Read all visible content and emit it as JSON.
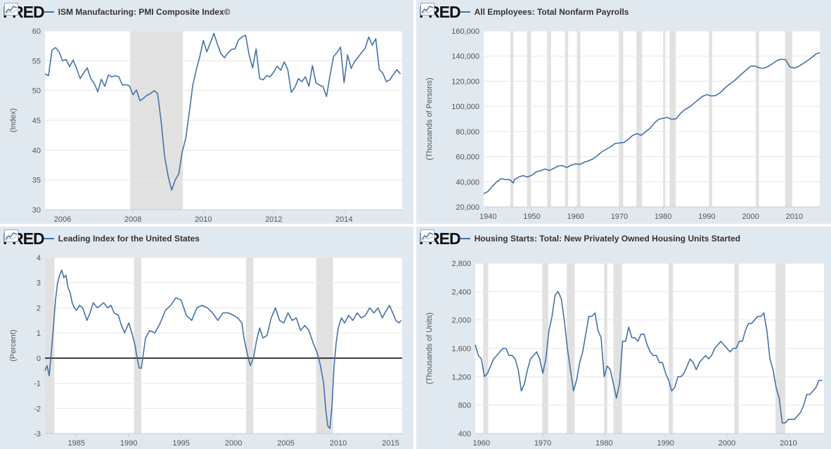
{
  "logo": {
    "text": "FRED",
    "icon": "fred-chart-icon"
  },
  "colors": {
    "series": "#4572a7",
    "recession": "#e1e1e1",
    "panel_bg": "#e1e9f0",
    "plot_bg": "#ffffff",
    "zero_line": "#000000"
  },
  "chart_data": [
    {
      "id": "pmi",
      "type": "line",
      "title": "ISM Manufacturing: PMI Composite Index©",
      "ylabel": "(Index)",
      "xlim": [
        2005.5,
        2015.65
      ],
      "ylim": [
        30,
        60
      ],
      "yticks": [
        30,
        35,
        40,
        45,
        50,
        55,
        60
      ],
      "yticks_format": "plain",
      "xticks": [
        2006,
        2008,
        2010,
        2012,
        2014
      ],
      "recessions": [
        [
          2007.92,
          2009.42
        ]
      ],
      "series": [
        {
          "x": [
            2005.5,
            2005.6,
            2005.7,
            2005.8,
            2005.9,
            2006.0,
            2006.1,
            2006.2,
            2006.3,
            2006.4,
            2006.5,
            2006.6,
            2006.7,
            2006.8,
            2006.9,
            2007.0,
            2007.1,
            2007.2,
            2007.3,
            2007.4,
            2007.5,
            2007.6,
            2007.7,
            2007.8,
            2007.9,
            2008.0,
            2008.1,
            2008.2,
            2008.3,
            2008.4,
            2008.5,
            2008.6,
            2008.7,
            2008.8,
            2008.9,
            2009.0,
            2009.1,
            2009.2,
            2009.3,
            2009.4,
            2009.5,
            2009.6,
            2009.7,
            2009.8,
            2009.9,
            2010.0,
            2010.1,
            2010.2,
            2010.3,
            2010.4,
            2010.5,
            2010.6,
            2010.7,
            2010.8,
            2010.9,
            2011.0,
            2011.1,
            2011.2,
            2011.3,
            2011.4,
            2011.5,
            2011.6,
            2011.7,
            2011.8,
            2011.9,
            2012.0,
            2012.1,
            2012.2,
            2012.3,
            2012.4,
            2012.5,
            2012.6,
            2012.7,
            2012.8,
            2012.9,
            2013.0,
            2013.1,
            2013.2,
            2013.3,
            2013.4,
            2013.5,
            2013.6,
            2013.7,
            2013.8,
            2013.9,
            2014.0,
            2014.1,
            2014.2,
            2014.3,
            2014.4,
            2014.5,
            2014.6,
            2014.7,
            2014.8,
            2014.9,
            2015.0,
            2015.1,
            2015.2,
            2015.3,
            2015.4,
            2015.5,
            2015.6
          ],
          "y": [
            52.8,
            52.5,
            56.8,
            57.2,
            56.5,
            55.0,
            55.2,
            54.0,
            55.1,
            53.7,
            52.0,
            53.0,
            53.8,
            52.0,
            51.2,
            49.8,
            51.9,
            50.7,
            52.6,
            52.3,
            52.5,
            52.3,
            50.9,
            51.0,
            50.8,
            49.3,
            50.1,
            48.3,
            48.7,
            49.2,
            49.5,
            50.0,
            49.5,
            44.8,
            38.9,
            35.6,
            33.3,
            35.0,
            36.0,
            39.7,
            42.0,
            46.3,
            50.9,
            53.5,
            55.7,
            58.4,
            56.5,
            58.0,
            59.6,
            57.8,
            56.2,
            55.5,
            56.3,
            56.9,
            57.0,
            58.5,
            59.0,
            59.3,
            56.0,
            53.8,
            57.0,
            52.0,
            51.8,
            52.5,
            52.3,
            53.1,
            54.1,
            53.4,
            54.8,
            53.5,
            49.7,
            50.5,
            52.0,
            51.5,
            52.3,
            50.7,
            54.2,
            51.3,
            50.9,
            50.7,
            49.0,
            52.5,
            55.7,
            56.4,
            57.3,
            51.3,
            56.0,
            53.7,
            54.9,
            55.6,
            56.4,
            57.1,
            59.0,
            57.6,
            58.7,
            53.5,
            52.9,
            51.5,
            51.8,
            52.7,
            53.5,
            52.8
          ]
        }
      ]
    },
    {
      "id": "payrolls",
      "type": "line",
      "title": "All Employees: Total Nonfarm Payrolls",
      "ylabel": "(Thousands of Persons)",
      "xlim": [
        1939,
        2015.8
      ],
      "ylim": [
        20000,
        160000
      ],
      "yticks": [
        20000,
        40000,
        60000,
        80000,
        100000,
        120000,
        140000,
        160000
      ],
      "yticks_format": "thousands",
      "xticks": [
        1940,
        1950,
        1960,
        1970,
        1980,
        1990,
        2000,
        2010
      ],
      "recessions": [
        [
          1945.1,
          1945.8
        ],
        [
          1948.9,
          1949.8
        ],
        [
          1953.5,
          1954.4
        ],
        [
          1957.6,
          1958.3
        ],
        [
          1960.3,
          1961.1
        ],
        [
          1969.9,
          1970.9
        ],
        [
          1973.9,
          1975.2
        ],
        [
          1980.0,
          1980.5
        ],
        [
          1981.5,
          1982.9
        ],
        [
          1990.5,
          1991.2
        ],
        [
          2001.2,
          2001.9
        ],
        [
          2007.9,
          2009.5
        ]
      ],
      "series": [
        {
          "x": [
            1939,
            1940,
            1941,
            1942,
            1943,
            1944,
            1945,
            1945.8,
            1946,
            1947,
            1948,
            1949,
            1950,
            1951,
            1952,
            1953,
            1954,
            1955,
            1956,
            1957,
            1958,
            1959,
            1960,
            1961,
            1962,
            1963,
            1964,
            1965,
            1966,
            1967,
            1968,
            1969,
            1970,
            1971,
            1972,
            1973,
            1974,
            1975,
            1976,
            1977,
            1978,
            1979,
            1980,
            1981,
            1982,
            1983,
            1984,
            1985,
            1986,
            1987,
            1988,
            1989,
            1990,
            1991,
            1992,
            1993,
            1994,
            1995,
            1996,
            1997,
            1998,
            1999,
            2000,
            2001,
            2002,
            2003,
            2004,
            2005,
            2006,
            2007,
            2008,
            2009,
            2010,
            2011,
            2012,
            2013,
            2014,
            2015,
            2015.8
          ],
          "y": [
            30500,
            32400,
            36500,
            40000,
            42400,
            41900,
            41500,
            39000,
            41700,
            43800,
            44900,
            43800,
            45200,
            47900,
            48800,
            50200,
            48990,
            50600,
            52500,
            52900,
            51300,
            53300,
            54200,
            53800,
            55600,
            56700,
            58300,
            60800,
            63900,
            65800,
            67900,
            70400,
            70900,
            71200,
            73700,
            76800,
            78300,
            77000,
            79800,
            82500,
            86700,
            89800,
            90500,
            91200,
            89600,
            90200,
            94500,
            97500,
            99500,
            102200,
            105200,
            107900,
            109400,
            108300,
            108600,
            110700,
            114100,
            117200,
            119600,
            122700,
            125900,
            128900,
            132000,
            132100,
            130600,
            130300,
            131800,
            134000,
            136400,
            137600,
            137100,
            131300,
            130500,
            131900,
            134100,
            136400,
            139000,
            141800,
            142700
          ]
        }
      ]
    },
    {
      "id": "leading",
      "type": "line",
      "title": "Leading Index for the United States",
      "ylabel": "(Percent)",
      "xlim": [
        1982,
        2016.1
      ],
      "ylim": [
        -3,
        4
      ],
      "yticks": [
        -3,
        -2,
        -1,
        0,
        1,
        2,
        3,
        4
      ],
      "yticks_format": "plain",
      "xticks": [
        1985,
        1990,
        1995,
        2000,
        2005,
        2010,
        2015
      ],
      "zero_line": true,
      "recessions": [
        [
          1982.0,
          1982.9
        ],
        [
          1990.5,
          1991.2
        ],
        [
          2001.2,
          2001.9
        ],
        [
          2007.9,
          2009.5
        ]
      ],
      "series": [
        {
          "x": [
            1982.0,
            1982.2,
            1982.4,
            1982.6,
            1982.8,
            1983.0,
            1983.2,
            1983.4,
            1983.6,
            1983.8,
            1984.0,
            1984.2,
            1984.4,
            1984.6,
            1984.8,
            1985.0,
            1985.3,
            1985.6,
            1986.0,
            1986.3,
            1986.6,
            1987.0,
            1987.3,
            1987.6,
            1988.0,
            1988.3,
            1988.6,
            1989.0,
            1989.3,
            1989.6,
            1990.0,
            1990.3,
            1990.6,
            1990.8,
            1991.0,
            1991.2,
            1991.4,
            1991.6,
            1992.0,
            1992.5,
            1993.0,
            1993.5,
            1994.0,
            1994.5,
            1995.0,
            1995.5,
            1996.0,
            1996.5,
            1997.0,
            1997.5,
            1998.0,
            1998.5,
            1999.0,
            1999.5,
            2000.0,
            2000.4,
            2000.8,
            2001.0,
            2001.3,
            2001.6,
            2001.9,
            2002.2,
            2002.5,
            2002.8,
            2003.2,
            2003.6,
            2004.0,
            2004.4,
            2004.8,
            2005.2,
            2005.6,
            2006.0,
            2006.4,
            2006.8,
            2007.2,
            2007.6,
            2008.0,
            2008.3,
            2008.6,
            2008.8,
            2009.0,
            2009.2,
            2009.4,
            2009.6,
            2009.8,
            2010.0,
            2010.3,
            2010.6,
            2011.0,
            2011.4,
            2011.8,
            2012.2,
            2012.6,
            2013.0,
            2013.4,
            2013.8,
            2014.2,
            2014.6,
            2014.9,
            2015.2,
            2015.5,
            2015.8,
            2016.0
          ],
          "y": [
            -0.5,
            -0.3,
            -0.7,
            0.2,
            1.2,
            2.3,
            3.0,
            3.3,
            3.5,
            3.2,
            3.3,
            2.8,
            2.6,
            2.2,
            2.0,
            1.9,
            2.1,
            2.0,
            1.5,
            1.8,
            2.2,
            2.0,
            2.1,
            2.2,
            2.0,
            2.1,
            1.8,
            1.7,
            1.3,
            1.0,
            1.4,
            1.0,
            0.5,
            0.0,
            -0.4,
            -0.4,
            0.2,
            0.8,
            1.1,
            1.0,
            1.4,
            1.9,
            2.1,
            2.4,
            2.3,
            1.7,
            1.5,
            2.0,
            2.1,
            2.0,
            1.8,
            1.5,
            1.8,
            1.8,
            1.7,
            1.6,
            1.4,
            0.8,
            0.2,
            -0.3,
            0.0,
            0.7,
            1.2,
            0.8,
            0.9,
            1.6,
            2.0,
            1.5,
            1.4,
            1.8,
            1.5,
            1.6,
            1.1,
            1.3,
            1.1,
            0.6,
            0.2,
            -0.3,
            -1.0,
            -2.0,
            -2.7,
            -2.8,
            -1.9,
            -0.3,
            0.6,
            1.2,
            1.6,
            1.4,
            1.7,
            1.5,
            1.8,
            1.6,
            1.7,
            2.0,
            1.8,
            2.0,
            1.6,
            1.9,
            2.1,
            1.8,
            1.5,
            1.4,
            1.5
          ]
        }
      ]
    },
    {
      "id": "housing",
      "type": "line",
      "title": "Housing Starts: Total: New Privately Owned Housing Units Started",
      "ylabel": "(Thousands of Units)",
      "xlim": [
        1959,
        2015.8
      ],
      "ylim": [
        400,
        2800
      ],
      "yticks": [
        400,
        800,
        1200,
        1600,
        2000,
        2400,
        2800
      ],
      "yticks_format": "thousands",
      "xticks": [
        1960,
        1970,
        1980,
        1990,
        2000,
        2010
      ],
      "recessions": [
        [
          1960.3,
          1961.1
        ],
        [
          1969.9,
          1970.9
        ],
        [
          1973.9,
          1975.2
        ],
        [
          1980.0,
          1980.5
        ],
        [
          1981.5,
          1982.9
        ],
        [
          1990.5,
          1991.2
        ],
        [
          2001.2,
          2001.9
        ],
        [
          2007.9,
          2009.5
        ]
      ],
      "series": [
        {
          "x": [
            1959.0,
            1959.5,
            1960.0,
            1960.5,
            1961.0,
            1961.5,
            1962.0,
            1962.5,
            1963.0,
            1963.5,
            1964.0,
            1964.5,
            1965.0,
            1965.5,
            1966.0,
            1966.5,
            1967.0,
            1967.5,
            1968.0,
            1968.5,
            1969.0,
            1969.5,
            1970.0,
            1970.5,
            1971.0,
            1971.5,
            1972.0,
            1972.5,
            1973.0,
            1973.5,
            1974.0,
            1974.5,
            1975.0,
            1975.5,
            1976.0,
            1976.5,
            1977.0,
            1977.5,
            1978.0,
            1978.5,
            1979.0,
            1979.5,
            1980.0,
            1980.5,
            1981.0,
            1981.5,
            1982.0,
            1982.5,
            1983.0,
            1983.5,
            1984.0,
            1984.5,
            1985.0,
            1985.5,
            1986.0,
            1986.5,
            1987.0,
            1987.5,
            1988.0,
            1988.5,
            1989.0,
            1989.5,
            1990.0,
            1990.5,
            1991.0,
            1991.5,
            1992.0,
            1992.5,
            1993.0,
            1993.5,
            1994.0,
            1994.5,
            1995.0,
            1995.5,
            1996.0,
            1996.5,
            1997.0,
            1997.5,
            1998.0,
            1998.5,
            1999.0,
            1999.5,
            2000.0,
            2000.5,
            2001.0,
            2001.5,
            2002.0,
            2002.5,
            2003.0,
            2003.5,
            2004.0,
            2004.5,
            2005.0,
            2005.5,
            2006.0,
            2006.5,
            2007.0,
            2007.5,
            2008.0,
            2008.5,
            2009.0,
            2009.5,
            2010.0,
            2010.5,
            2011.0,
            2011.5,
            2012.0,
            2012.5,
            2013.0,
            2013.5,
            2014.0,
            2014.5,
            2015.0,
            2015.5
          ],
          "y": [
            1650,
            1500,
            1450,
            1200,
            1250,
            1350,
            1450,
            1500,
            1550,
            1600,
            1600,
            1500,
            1500,
            1450,
            1300,
            1000,
            1100,
            1300,
            1450,
            1500,
            1550,
            1450,
            1250,
            1450,
            1850,
            2050,
            2350,
            2400,
            2300,
            2000,
            1600,
            1300,
            1000,
            1150,
            1400,
            1550,
            1800,
            2050,
            2050,
            2100,
            1850,
            1750,
            1200,
            1350,
            1300,
            1100,
            900,
            1100,
            1700,
            1700,
            1900,
            1750,
            1750,
            1700,
            1800,
            1800,
            1650,
            1550,
            1500,
            1500,
            1400,
            1400,
            1250,
            1150,
            1000,
            1050,
            1200,
            1200,
            1250,
            1350,
            1450,
            1400,
            1300,
            1400,
            1450,
            1500,
            1450,
            1500,
            1600,
            1650,
            1700,
            1650,
            1600,
            1550,
            1600,
            1600,
            1700,
            1700,
            1850,
            1950,
            1950,
            2000,
            2050,
            2050,
            2100,
            1850,
            1450,
            1300,
            1050,
            900,
            550,
            550,
            600,
            600,
            600,
            650,
            700,
            800,
            950,
            950,
            1000,
            1050,
            1150,
            1150
          ]
        }
      ]
    }
  ]
}
